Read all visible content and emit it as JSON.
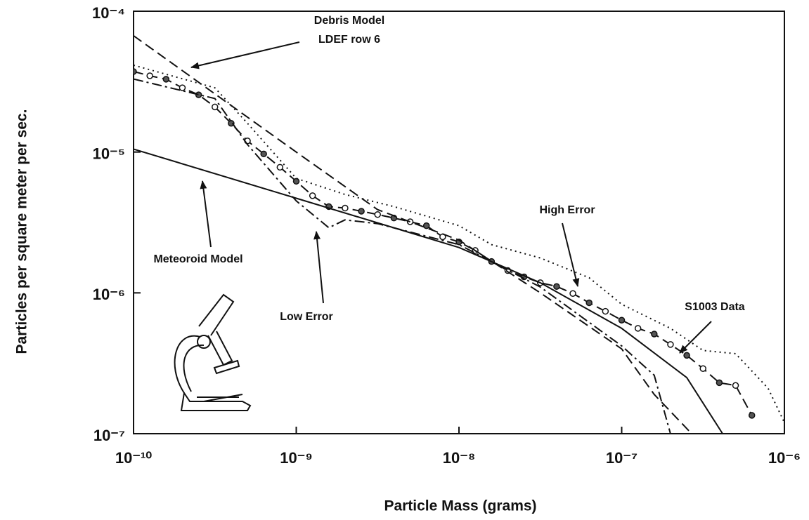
{
  "chart_data": {
    "type": "line",
    "x_label": "Particle Mass (grams)",
    "y_label": "Particles per square meter per sec.",
    "xscale": "log",
    "yscale": "log",
    "grid": false,
    "xlim": [
      1e-10,
      1e-06
    ],
    "ylim": [
      1e-07,
      0.0001
    ],
    "xticks": [
      {
        "value": 1e-10,
        "label": "10⁻¹⁰"
      },
      {
        "value": 1e-09,
        "label": "10⁻⁹"
      },
      {
        "value": 1e-08,
        "label": "10⁻⁸"
      },
      {
        "value": 1e-07,
        "label": "10⁻⁷"
      },
      {
        "value": 1e-06,
        "label": "10⁻⁶"
      }
    ],
    "yticks": [
      {
        "value": 1e-07,
        "label": "10⁻⁷"
      },
      {
        "value": 1e-06,
        "label": "10⁻⁶"
      },
      {
        "value": 1e-05,
        "label": "10⁻⁵"
      },
      {
        "value": 0.0001,
        "label": "10⁻⁴"
      }
    ],
    "annotations": [
      "Debris Model",
      "LDEF row 6",
      "Meteoroid Model",
      "Low Error",
      "High Error",
      "S1003 Data"
    ],
    "series": [
      {
        "color": "#111111",
        "line_style": "dashed",
        "marker": "circle",
        "x": [
          1e-10,
          1.259e-10,
          1.585e-10,
          1.995e-10,
          2.512e-10,
          3.162e-10,
          3.981e-10,
          5.012e-10,
          6.31e-10,
          7.943e-10,
          1e-09,
          1.259e-09,
          1.585e-09,
          1.995e-09,
          2.512e-09,
          3.162e-09,
          3.981e-09,
          5.012e-09,
          6.31e-09,
          7.943e-09,
          1e-08,
          1.259e-08,
          1.585e-08,
          1.995e-08,
          2.512e-08,
          3.162e-08,
          3.981e-08,
          5.012e-08,
          6.31e-08,
          7.943e-08,
          1e-07,
          1.259e-07,
          1.585e-07,
          1.995e-07,
          2.512e-07,
          3.162e-07,
          3.981e-07,
          5.012e-07,
          6.31e-07
        ],
        "values": [
          3.73e-05,
          3.48e-05,
          3.29e-05,
          2.86e-05,
          2.55e-05,
          2.09e-05,
          1.6e-05,
          1.2e-05,
          9.7e-06,
          7.8e-06,
          6.2e-06,
          4.9e-06,
          4.1e-06,
          4e-06,
          3.8e-06,
          3.6e-06,
          3.4e-06,
          3.2e-06,
          3e-06,
          2.5e-06,
          2.3e-06,
          2e-06,
          1.67e-06,
          1.44e-06,
          1.3e-06,
          1.18e-06,
          1.11e-06,
          9.9e-07,
          8.5e-07,
          7.4e-07,
          6.4e-07,
          5.6e-07,
          5.1e-07,
          4.3e-07,
          3.6e-07,
          2.9e-07,
          2.3e-07,
          2.2e-07,
          1.35e-07
        ]
      },
      {
        "color": "#111111",
        "line_style": "dashed",
        "x": [
          1e-10,
          1e-09,
          3.162e-09,
          1e-08,
          3.162e-08,
          1e-07,
          1.585e-07,
          2.692e-07
        ],
        "values": [
          6.7e-05,
          1e-05,
          3.9e-06,
          2.37e-06,
          1e-06,
          4e-07,
          1.9e-07,
          1e-07
        ]
      },
      {
        "color": "#111111",
        "line_style": "solid",
        "x": [
          1e-10,
          1e-09,
          1e-08,
          3.162e-08,
          1e-07,
          2.512e-07,
          4.17e-07
        ],
        "values": [
          1.05e-05,
          4.7e-06,
          2.1e-06,
          1.18e-06,
          5.6e-07,
          2.5e-07,
          1e-07
        ]
      },
      {
        "color": "#111111",
        "line_style": "dotted",
        "x": [
          1e-10,
          3.162e-10,
          5.012e-10,
          1e-09,
          1.995e-09,
          3.981e-09,
          1e-08,
          1.585e-08,
          3.162e-08,
          6.31e-08,
          1e-07,
          1.995e-07,
          3.162e-07,
          5.012e-07,
          7.943e-07,
          1e-06
        ],
        "values": [
          4.14e-05,
          2.86e-05,
          1.6e-05,
          6.5e-06,
          5e-06,
          4.1e-06,
          3e-06,
          2.2e-06,
          1.77e-06,
          1.28e-06,
          8.3e-07,
          5.6e-07,
          3.9e-07,
          3.7e-07,
          2.1e-07,
          1.2e-07
        ]
      },
      {
        "color": "#111111",
        "line_style": "dashdot",
        "x": [
          1e-10,
          3.162e-10,
          5.012e-10,
          1e-09,
          1.585e-09,
          1.995e-09,
          3.162e-09,
          1e-08,
          3.162e-08,
          1e-07,
          1.585e-07,
          1.995e-07
        ],
        "values": [
          3.3e-05,
          2.4e-05,
          1.13e-05,
          4.5e-06,
          2.9e-06,
          3.3e-06,
          3.1e-06,
          2.2e-06,
          1.1e-06,
          4.2e-07,
          2.6e-07,
          1e-07
        ]
      }
    ]
  }
}
